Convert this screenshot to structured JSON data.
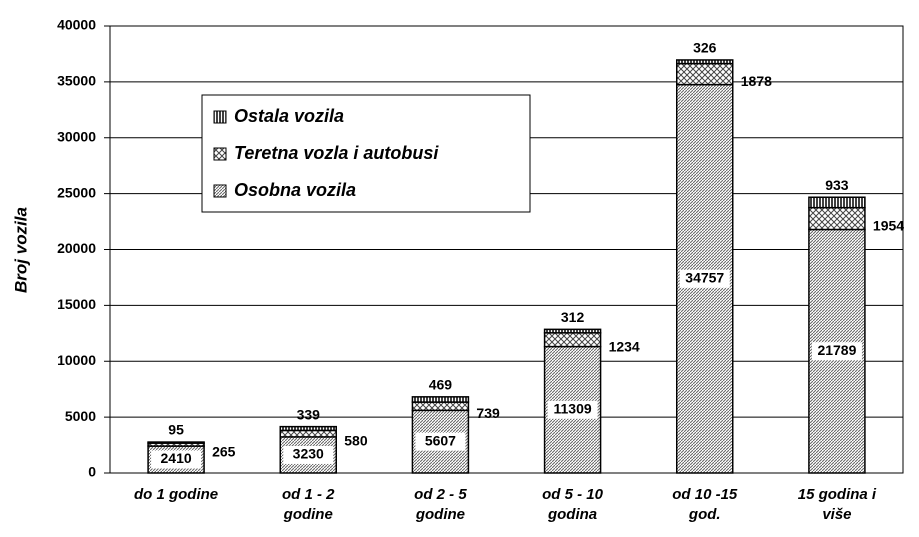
{
  "chart_data": {
    "type": "stacked_bar",
    "y_label": "Broj vozila",
    "categories": [
      "do 1 godine",
      "od 1 - 2 godine",
      "od 2 - 5 godine",
      "od 5 - 10 godina",
      "od 10 -15 god.",
      "15 godina i više"
    ],
    "series": [
      {
        "name": "Osobna vozila",
        "color": "#a0a0a0",
        "pattern": "dense",
        "values": [
          2410,
          3230,
          5607,
          11309,
          34757,
          21789
        ]
      },
      {
        "name": "Teretna vozla i autobusi",
        "color": "#808080",
        "pattern": "cross",
        "values": [
          265,
          580,
          739,
          1234,
          1878,
          1954
        ]
      },
      {
        "name": "Ostala vozila",
        "color": "#000000",
        "pattern": "vertical",
        "values": [
          95,
          339,
          469,
          312,
          326,
          933
        ]
      }
    ],
    "ylim": [
      0,
      40000
    ],
    "yticks": [
      0,
      5000,
      10000,
      15000,
      20000,
      25000,
      30000,
      35000,
      40000
    ],
    "grid": true
  }
}
